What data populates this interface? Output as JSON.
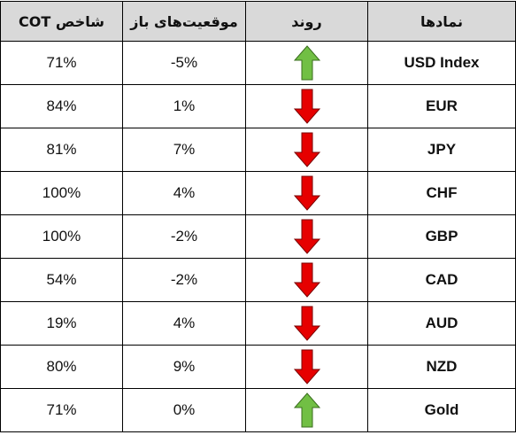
{
  "headers": {
    "cot_index": "شاخص COT",
    "open_positions": "موقعیت‌های باز",
    "trend": "روند",
    "symbols": "نمادها"
  },
  "colors": {
    "header_bg": "#d9d9d9",
    "up_arrow": "#71bf44",
    "down_arrow": "#e60000"
  },
  "rows": [
    {
      "symbol": "USD Index",
      "trend": "up",
      "trend_icon": "green-up-arrow-icon",
      "positions": "-5%",
      "cot": "71%"
    },
    {
      "symbol": "EUR",
      "trend": "down",
      "trend_icon": "red-down-arrow-icon",
      "positions": "1%",
      "cot": "84%"
    },
    {
      "symbol": "JPY",
      "trend": "down",
      "trend_icon": "red-down-arrow-icon",
      "positions": "7%",
      "cot": "81%"
    },
    {
      "symbol": "CHF",
      "trend": "down",
      "trend_icon": "red-down-arrow-icon",
      "positions": "4%",
      "cot": "100%"
    },
    {
      "symbol": "GBP",
      "trend": "down",
      "trend_icon": "red-down-arrow-icon",
      "positions": "-2%",
      "cot": "100%"
    },
    {
      "symbol": "CAD",
      "trend": "down",
      "trend_icon": "red-down-arrow-icon",
      "positions": "-2%",
      "cot": "54%"
    },
    {
      "symbol": "AUD",
      "trend": "down",
      "trend_icon": "red-down-arrow-icon",
      "positions": "4%",
      "cot": "19%"
    },
    {
      "symbol": "NZD",
      "trend": "down",
      "trend_icon": "red-down-arrow-icon",
      "positions": "9%",
      "cot": "80%"
    },
    {
      "symbol": "Gold",
      "trend": "up",
      "trend_icon": "green-up-arrow-icon",
      "positions": "0%",
      "cot": "71%"
    }
  ]
}
